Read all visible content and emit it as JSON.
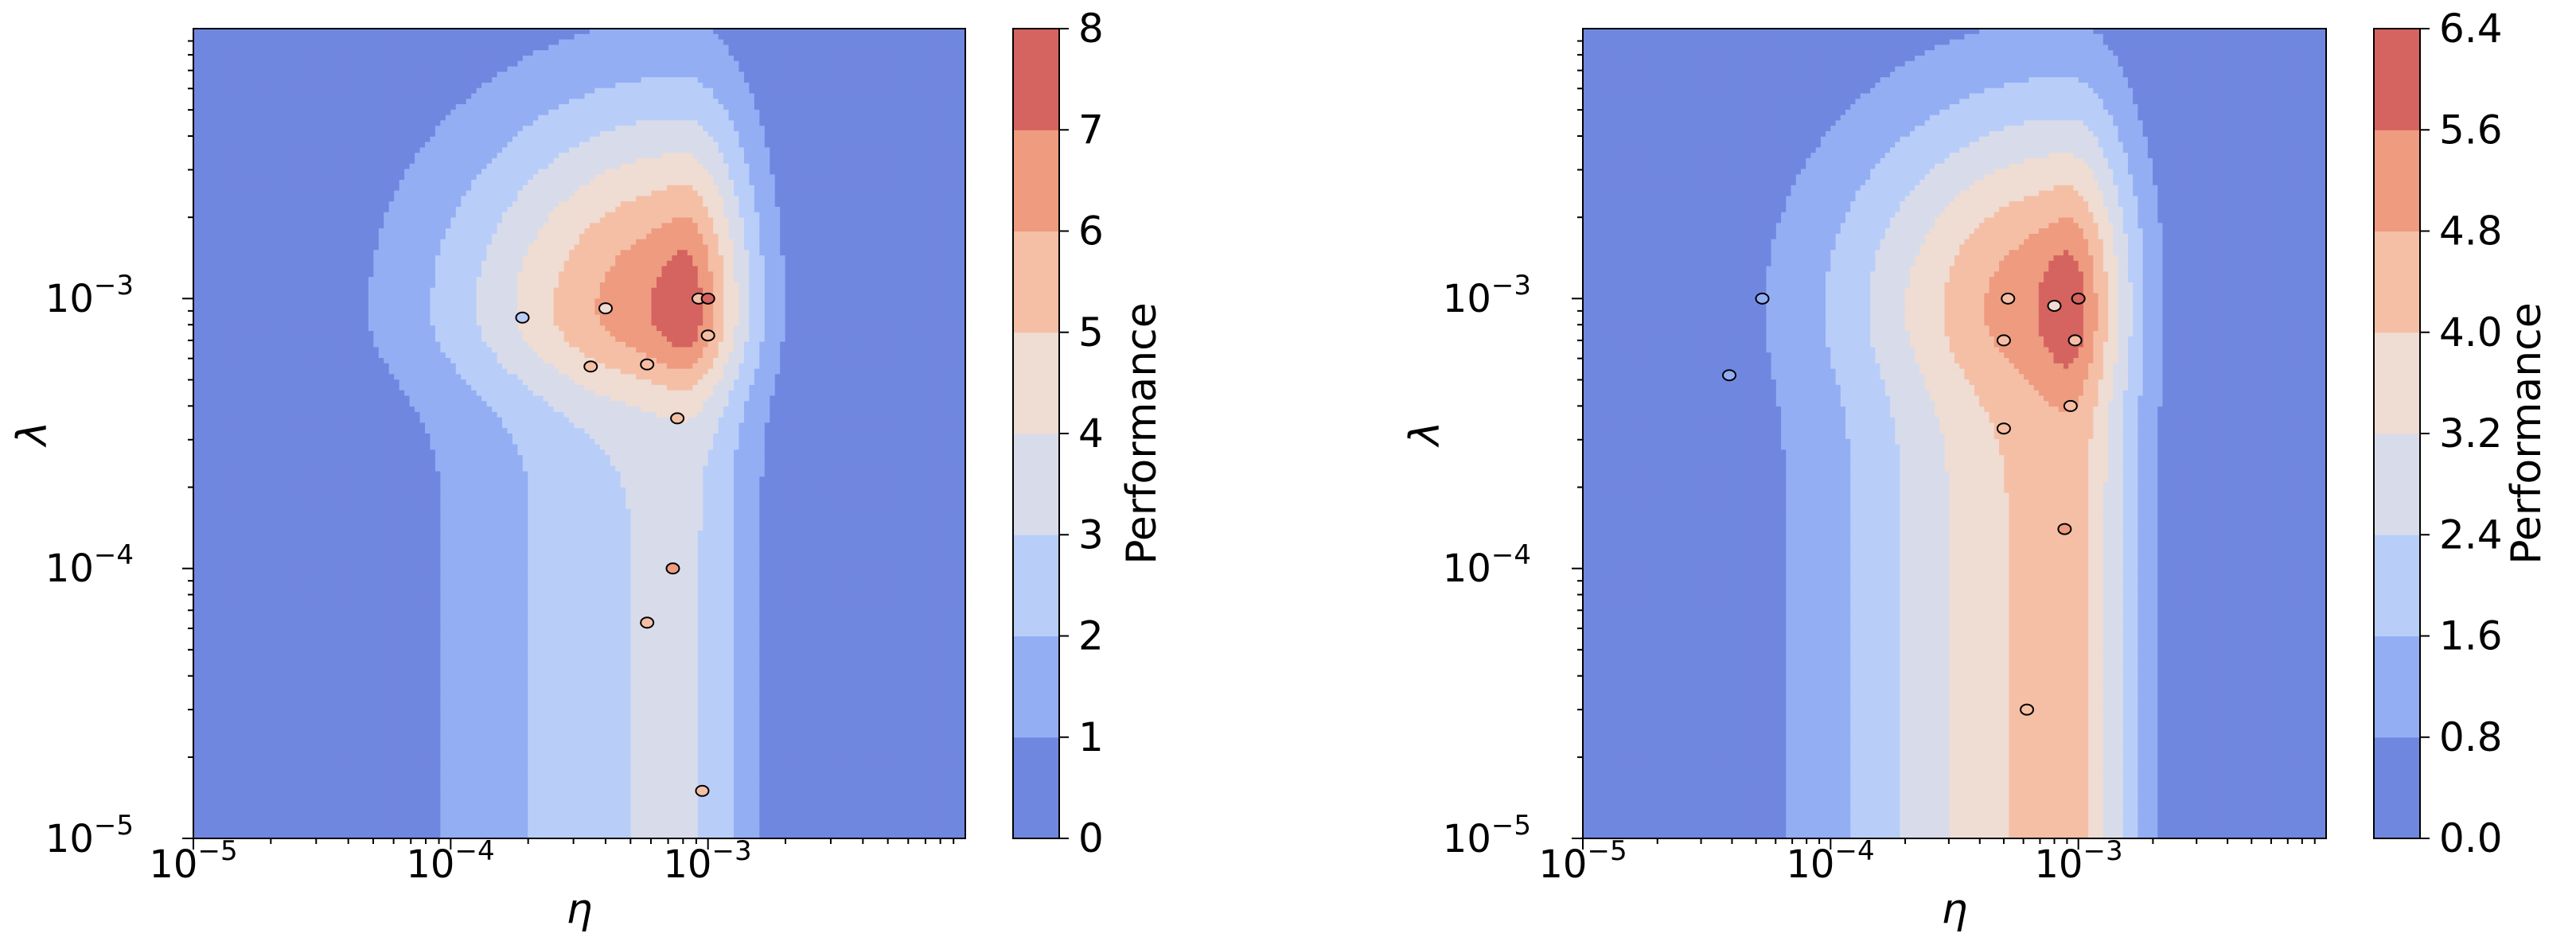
{
  "chart_data": [
    {
      "type": "contour",
      "xlabel": "η",
      "ylabel": "λ",
      "xscale": "log",
      "yscale": "log",
      "xlim": [
        1e-05,
        0.01
      ],
      "ylim": [
        1e-05,
        0.01
      ],
      "x_tick_labels": [
        {
          "value": 1e-05,
          "base": "10",
          "exp": "−5"
        },
        {
          "value": 0.0001,
          "base": "10",
          "exp": "−4"
        },
        {
          "value": 0.001,
          "base": "10",
          "exp": "−3"
        }
      ],
      "y_tick_labels": [
        {
          "value": 1e-05,
          "base": "10",
          "exp": "−5"
        },
        {
          "value": 0.0001,
          "base": "10",
          "exp": "−4"
        },
        {
          "value": 0.001,
          "base": "10",
          "exp": "−3"
        }
      ],
      "colorbar": {
        "label": "Performance",
        "levels": [
          0,
          1,
          2,
          3,
          4,
          5,
          6,
          7,
          8
        ],
        "tick_labels": [
          "0",
          "1",
          "2",
          "3",
          "4",
          "5",
          "6",
          "7",
          "8"
        ]
      },
      "surface": {
        "peak_x": 0.0008,
        "peak_y": 0.0009,
        "peak": 7.9,
        "ridge_tail": 3.6
      },
      "points": [
        {
          "x": 0.00019,
          "y": 0.00085,
          "value": 2.8
        },
        {
          "x": 0.0004,
          "y": 0.00092,
          "value": 4.7
        },
        {
          "x": 0.00035,
          "y": 0.00056,
          "value": 5.2
        },
        {
          "x": 0.00058,
          "y": 0.00057,
          "value": 5.6
        },
        {
          "x": 0.00092,
          "y": 0.001,
          "value": 5.9
        },
        {
          "x": 0.001,
          "y": 0.001,
          "value": 8.0
        },
        {
          "x": 0.001,
          "y": 0.00073,
          "value": 5.4
        },
        {
          "x": 0.00076,
          "y": 0.00036,
          "value": 5.8
        },
        {
          "x": 0.00073,
          "y": 0.0001,
          "value": 6.0
        },
        {
          "x": 0.00058,
          "y": 6.3e-05,
          "value": 5.6
        },
        {
          "x": 0.00095,
          "y": 1.5e-05,
          "value": 5.2
        }
      ]
    },
    {
      "type": "contour",
      "xlabel": "η",
      "ylabel": "λ",
      "xscale": "log",
      "yscale": "log",
      "xlim": [
        1e-05,
        0.01
      ],
      "ylim": [
        1e-05,
        0.01
      ],
      "x_tick_labels": [
        {
          "value": 1e-05,
          "base": "10",
          "exp": "−5"
        },
        {
          "value": 0.0001,
          "base": "10",
          "exp": "−4"
        },
        {
          "value": 0.001,
          "base": "10",
          "exp": "−3"
        }
      ],
      "y_tick_labels": [
        {
          "value": 1e-05,
          "base": "10",
          "exp": "−5"
        },
        {
          "value": 0.0001,
          "base": "10",
          "exp": "−4"
        },
        {
          "value": 0.001,
          "base": "10",
          "exp": "−3"
        }
      ],
      "colorbar": {
        "label": "Performance",
        "levels": [
          0,
          0.8,
          1.6,
          2.4,
          3.2,
          4.0,
          4.8,
          5.6,
          6.4
        ],
        "tick_labels": [
          "0.0",
          "0.8",
          "1.6",
          "2.4",
          "3.2",
          "4.0",
          "4.8",
          "5.6",
          "6.4"
        ]
      },
      "surface": {
        "peak_x": 0.0009,
        "peak_y": 0.0009,
        "peak": 6.3,
        "ridge_tail": 4.9
      },
      "points": [
        {
          "x": 5.3e-05,
          "y": 0.001,
          "value": 1.0
        },
        {
          "x": 3.9e-05,
          "y": 0.00052,
          "value": 1.2
        },
        {
          "x": 0.00052,
          "y": 0.001,
          "value": 4.3
        },
        {
          "x": 0.0005,
          "y": 0.0007,
          "value": 4.6
        },
        {
          "x": 0.0008,
          "y": 0.00094,
          "value": 3.6
        },
        {
          "x": 0.001,
          "y": 0.001,
          "value": 6.4
        },
        {
          "x": 0.00097,
          "y": 0.0007,
          "value": 4.4
        },
        {
          "x": 0.00093,
          "y": 0.0004,
          "value": 4.5
        },
        {
          "x": 0.0005,
          "y": 0.00033,
          "value": 4.7
        },
        {
          "x": 0.00088,
          "y": 0.00014,
          "value": 4.8
        },
        {
          "x": 0.00062,
          "y": 3e-05,
          "value": 4.6
        }
      ]
    }
  ],
  "colormap": [
    "#7087e0",
    "#94aef4",
    "#b8cef9",
    "#d8dcea",
    "#efdcd2",
    "#f5bfa6",
    "#ee9b80",
    "#d5635f"
  ]
}
